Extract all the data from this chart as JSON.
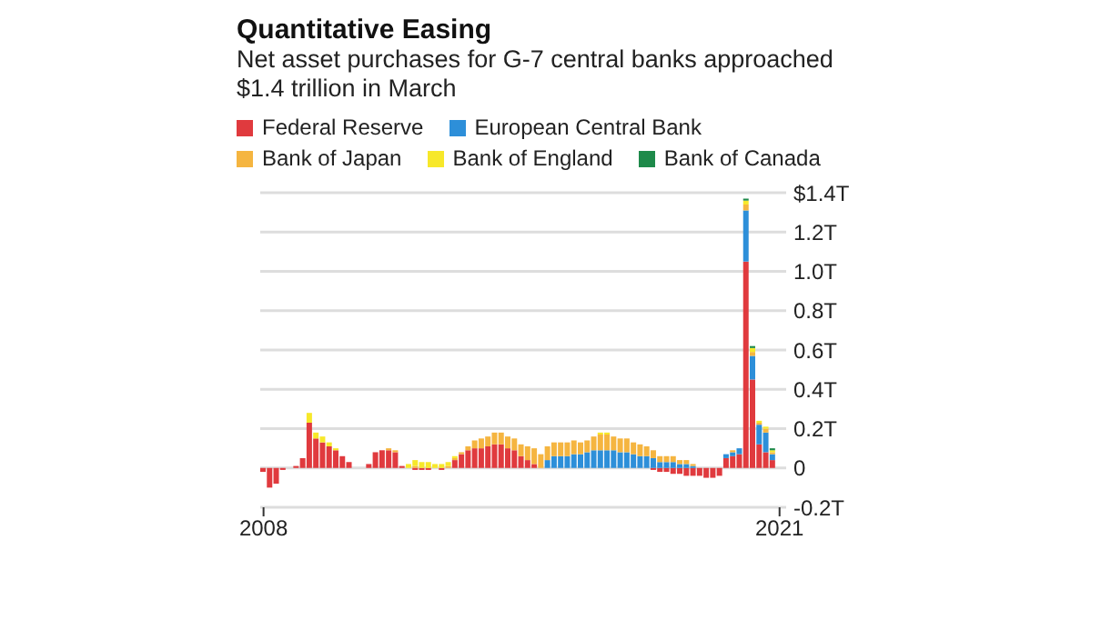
{
  "chart_data": {
    "type": "bar",
    "title": "Quantitative Easing",
    "subtitle": "Net asset purchases for G-7 central banks approached $1.4 trillion in March",
    "stacked": true,
    "legend": "top left",
    "grid": "y",
    "x": [
      "2008-01",
      "2008-03",
      "2008-05",
      "2008-07",
      "2008-09",
      "2008-11",
      "2009-01",
      "2009-03",
      "2009-05",
      "2009-07",
      "2009-09",
      "2009-11",
      "2010-01",
      "2010-03",
      "2010-05",
      "2010-07",
      "2010-09",
      "2010-11",
      "2011-01",
      "2011-03",
      "2011-05",
      "2011-07",
      "2011-09",
      "2011-11",
      "2012-01",
      "2012-03",
      "2012-05",
      "2012-07",
      "2012-09",
      "2012-11",
      "2013-01",
      "2013-03",
      "2013-05",
      "2013-07",
      "2013-09",
      "2013-11",
      "2014-01",
      "2014-03",
      "2014-05",
      "2014-07",
      "2014-09",
      "2014-11",
      "2015-01",
      "2015-03",
      "2015-05",
      "2015-07",
      "2015-09",
      "2015-11",
      "2016-01",
      "2016-03",
      "2016-05",
      "2016-07",
      "2016-09",
      "2016-11",
      "2017-01",
      "2017-03",
      "2017-05",
      "2017-07",
      "2017-09",
      "2017-11",
      "2018-01",
      "2018-03",
      "2018-05",
      "2018-07",
      "2018-09",
      "2018-11",
      "2019-01",
      "2019-03",
      "2019-05",
      "2019-07",
      "2019-09",
      "2019-11",
      "2020-01",
      "2020-03",
      "2020-05",
      "2020-07",
      "2020-09",
      "2020-11"
    ],
    "series": [
      {
        "name": "Federal Reserve",
        "color": "#e03a3e",
        "values": [
          -0.02,
          -0.1,
          -0.08,
          -0.01,
          0,
          0.01,
          0.05,
          0.23,
          0.15,
          0.13,
          0.11,
          0.09,
          0.06,
          0.03,
          0,
          0,
          0.02,
          0.08,
          0.09,
          0.09,
          0.08,
          0.01,
          0,
          -0.01,
          -0.01,
          -0.01,
          0,
          -0.01,
          0,
          0.04,
          0.07,
          0.09,
          0.1,
          0.1,
          0.11,
          0.12,
          0.12,
          0.1,
          0.09,
          0.06,
          0.04,
          0.02,
          0,
          0,
          0,
          0,
          0,
          0,
          0,
          0,
          0,
          0,
          0,
          0,
          0,
          0,
          0,
          0,
          0,
          -0.01,
          -0.02,
          -0.02,
          -0.03,
          -0.03,
          -0.04,
          -0.04,
          -0.04,
          -0.05,
          -0.05,
          -0.04,
          0.05,
          0.06,
          0.07,
          1.05,
          0.45,
          0.12,
          0.08,
          0.04
        ]
      },
      {
        "name": "European Central Bank",
        "color": "#2d8fd9",
        "values": [
          0,
          0,
          0,
          0,
          0,
          0,
          0,
          0,
          0,
          0,
          0,
          0,
          0,
          0,
          0,
          0,
          0,
          0,
          0,
          0,
          0,
          0,
          0,
          0,
          0,
          0,
          0,
          0,
          0,
          0,
          0,
          0,
          0,
          0,
          0,
          0,
          0,
          0,
          0,
          0,
          0,
          0,
          0,
          0.04,
          0.06,
          0.06,
          0.06,
          0.07,
          0.07,
          0.08,
          0.09,
          0.09,
          0.09,
          0.09,
          0.08,
          0.08,
          0.07,
          0.06,
          0.06,
          0.05,
          0.03,
          0.03,
          0.03,
          0.02,
          0.02,
          0.01,
          0,
          0,
          0,
          0,
          0.02,
          0.02,
          0.03,
          0.26,
          0.12,
          0.1,
          0.1,
          0.03
        ]
      },
      {
        "name": "Bank of Japan",
        "color": "#f5b540",
        "values": [
          0,
          0,
          0,
          0,
          0,
          0,
          0,
          0,
          0,
          0,
          0,
          0,
          0,
          0,
          0,
          0,
          0,
          0,
          0,
          0.01,
          0.01,
          0,
          0,
          0.01,
          0,
          0,
          0,
          0,
          0.01,
          0.01,
          0.01,
          0.02,
          0.04,
          0.05,
          0.05,
          0.06,
          0.06,
          0.06,
          0.06,
          0.06,
          0.07,
          0.08,
          0.07,
          0.07,
          0.07,
          0.07,
          0.07,
          0.07,
          0.06,
          0.06,
          0.07,
          0.08,
          0.08,
          0.07,
          0.07,
          0.07,
          0.06,
          0.06,
          0.05,
          0.04,
          0.03,
          0.03,
          0.03,
          0.02,
          0.02,
          0.01,
          0,
          0,
          0,
          0,
          0,
          0.01,
          0,
          0.03,
          0.02,
          0.01,
          0.02,
          0.01
        ]
      },
      {
        "name": "Bank of England",
        "color": "#f7e82a",
        "values": [
          0,
          0,
          0,
          0,
          0,
          0,
          0,
          0.05,
          0.03,
          0.03,
          0.02,
          0.01,
          0,
          0,
          0,
          0,
          0,
          0,
          0,
          0,
          0,
          0,
          0.02,
          0.03,
          0.03,
          0.03,
          0.02,
          0.02,
          0.02,
          0.01,
          0,
          0,
          0,
          0,
          0,
          0,
          0,
          0,
          0,
          0,
          0,
          0,
          0,
          0,
          0,
          0,
          0,
          0,
          0,
          0,
          0,
          0.01,
          0.01,
          0,
          0,
          0,
          0,
          0,
          0,
          0,
          0,
          0,
          0,
          0,
          0,
          0,
          0,
          0,
          0,
          0,
          0,
          0,
          0,
          0.02,
          0.02,
          0.01,
          0.01,
          0.01
        ]
      },
      {
        "name": "Bank of Canada",
        "color": "#1e8a4a",
        "values": [
          0,
          0,
          0,
          0,
          0,
          0,
          0,
          0,
          0,
          0,
          0,
          0,
          0,
          0,
          0,
          0,
          0,
          0,
          0,
          0,
          0,
          0,
          0,
          0,
          0,
          0,
          0,
          0,
          0,
          0,
          0,
          0,
          0,
          0,
          0,
          0,
          0,
          0,
          0,
          0,
          0,
          0,
          0,
          0,
          0,
          0,
          0,
          0,
          0,
          0,
          0,
          0,
          0,
          0,
          0,
          0,
          0,
          0,
          0,
          0,
          0,
          0,
          0,
          0,
          0,
          0,
          0,
          0,
          0,
          0,
          0,
          0,
          0,
          0.01,
          0.01,
          0,
          0,
          0.01
        ]
      }
    ],
    "xlim": [
      "2007-12",
      "2021-03"
    ],
    "xticks": [
      {
        "value": "2008-01",
        "label": "2008"
      },
      {
        "value": "2021-01",
        "label": "2021"
      }
    ],
    "ylim": [
      -0.2,
      1.4
    ],
    "yticks": [
      {
        "value": -0.2,
        "label": "-0.2T"
      },
      0,
      {
        "value": 0.2,
        "label": "0.2T"
      },
      {
        "value": 0.4,
        "label": "0.4T"
      },
      {
        "value": 0.6,
        "label": "0.6T"
      },
      {
        "value": 0.8,
        "label": "0.8T"
      },
      {
        "value": 1.0,
        "label": "1.0T"
      },
      {
        "value": 1.2,
        "label": "1.2T"
      },
      {
        "value": 1.4,
        "label": "$1.4T"
      }
    ]
  }
}
